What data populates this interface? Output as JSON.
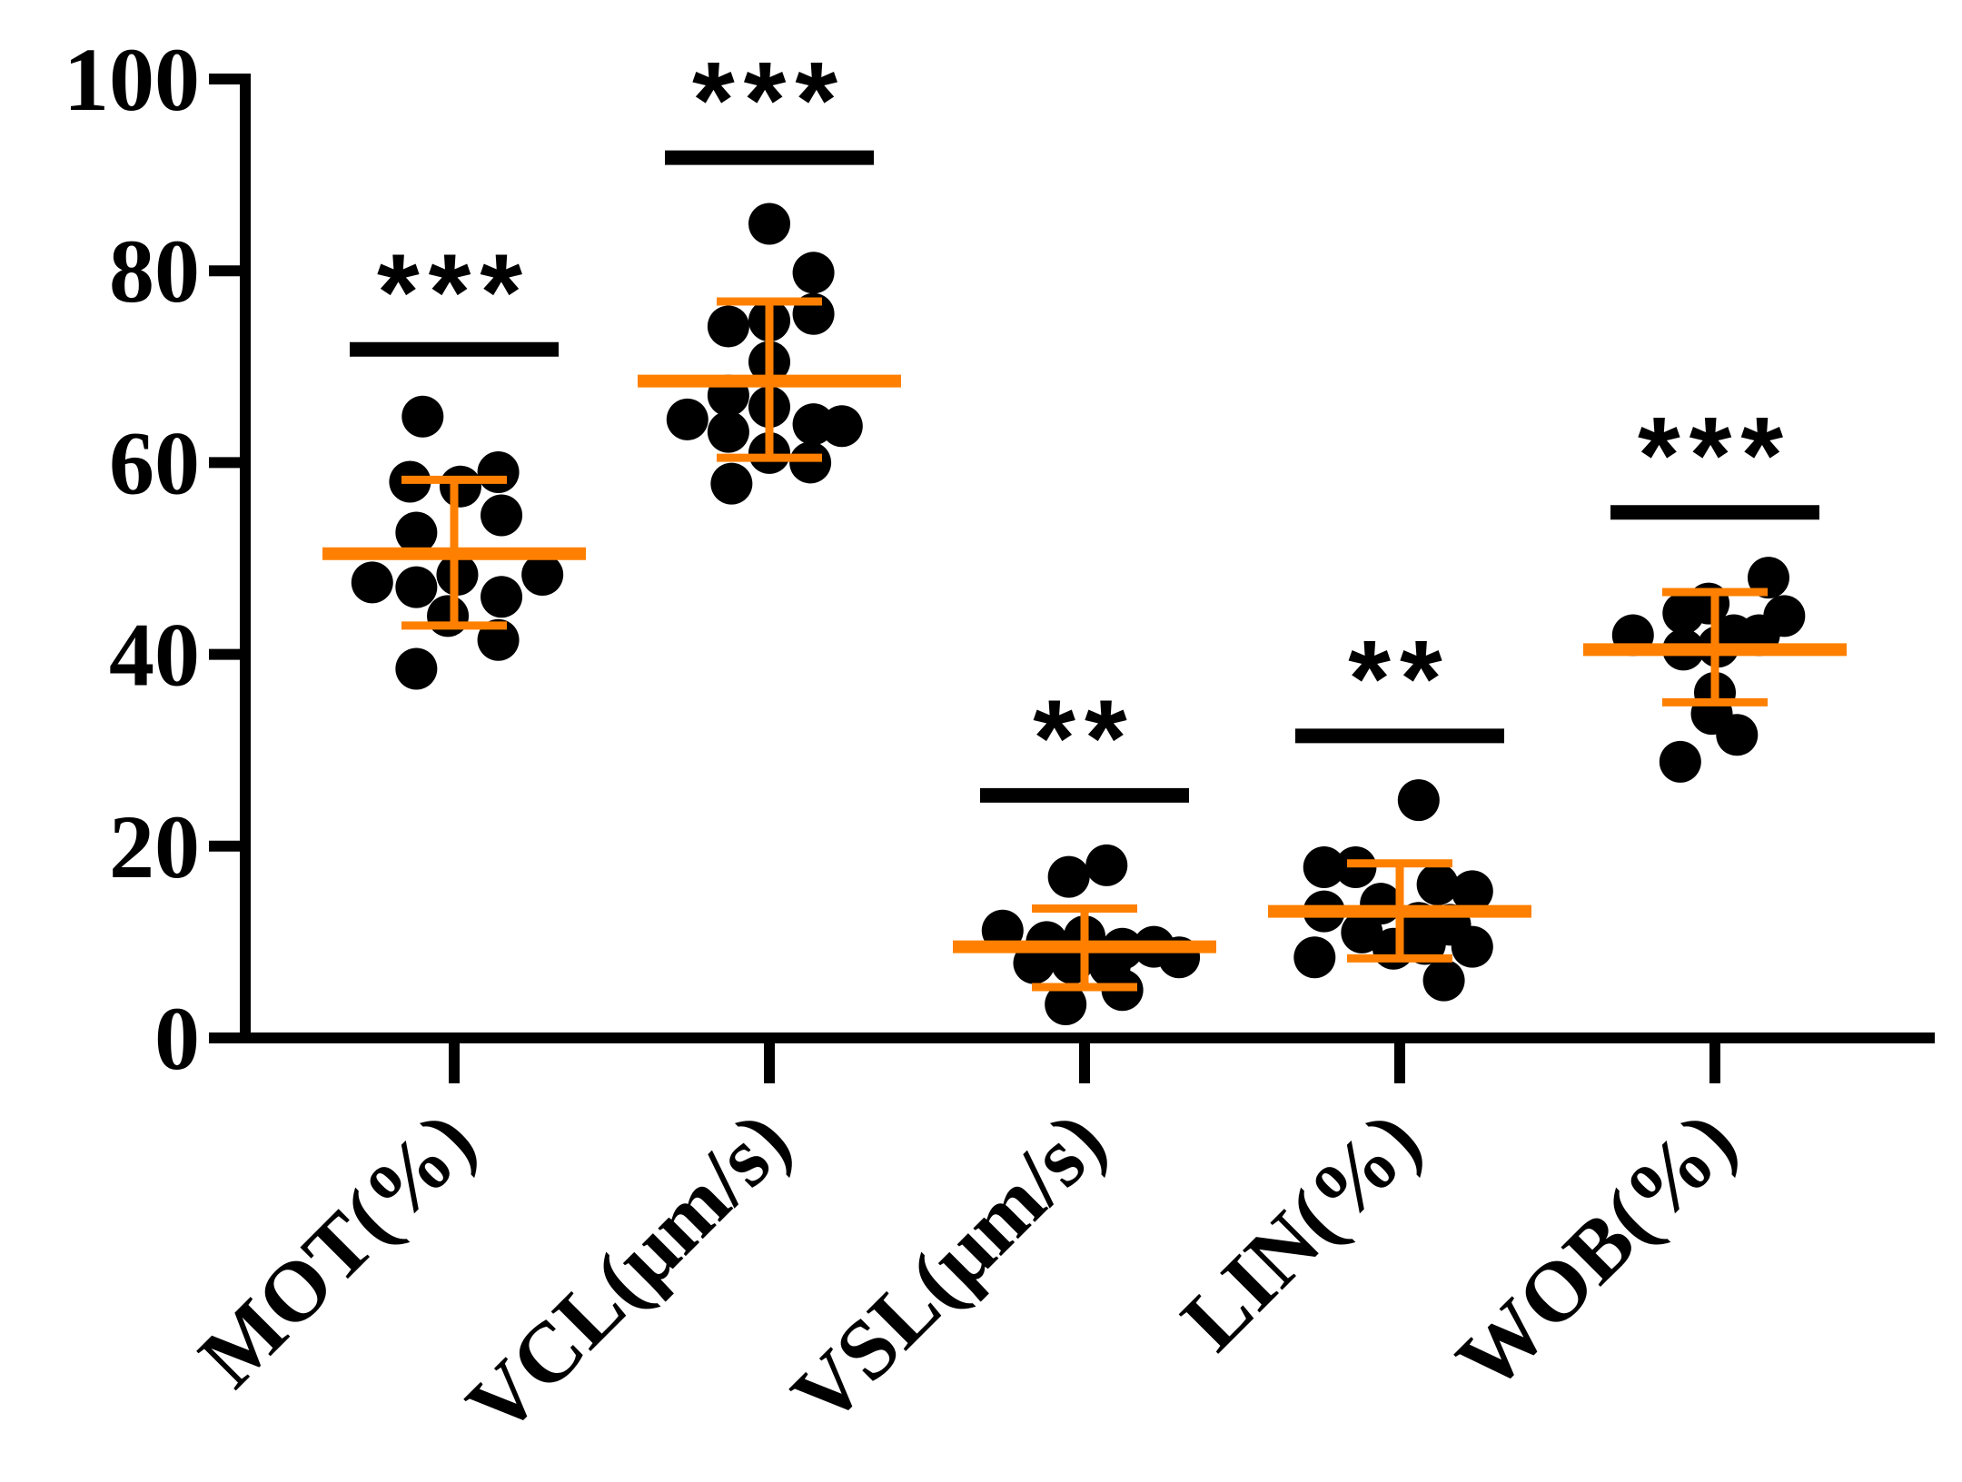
{
  "chart_data": {
    "type": "scatter",
    "categories": [
      "MOT(%)",
      "VCL(μm/s)",
      "VSL(μm/s)",
      "LIN(%)",
      "WOB(%)"
    ],
    "ylim": [
      0,
      100
    ],
    "yticks": [
      0,
      20,
      40,
      60,
      80,
      100
    ],
    "xlabel": "",
    "ylabel": "",
    "grid": false,
    "colors": {
      "points": "#000000",
      "error_bars": "#FF8000",
      "axis": "#000000"
    },
    "groups": [
      {
        "category": "MOT(%)",
        "mean": 50.5,
        "sd_upper": 58.2,
        "sd_lower": 43.0,
        "points": [
          {
            "offset": -0.1,
            "y": 64.8
          },
          {
            "offset": -0.14,
            "y": 58.0
          },
          {
            "offset": 0.14,
            "y": 59.0
          },
          {
            "offset": 0.02,
            "y": 57.5
          },
          {
            "offset": 0.15,
            "y": 54.5
          },
          {
            "offset": -0.12,
            "y": 52.7
          },
          {
            "offset": -0.26,
            "y": 47.5
          },
          {
            "offset": -0.12,
            "y": 47.0
          },
          {
            "offset": 0.01,
            "y": 48.3
          },
          {
            "offset": 0.15,
            "y": 46.0
          },
          {
            "offset": 0.28,
            "y": 48.3
          },
          {
            "offset": -0.02,
            "y": 44.0
          },
          {
            "offset": 0.14,
            "y": 41.5
          },
          {
            "offset": -0.12,
            "y": 38.5
          }
        ],
        "significance": "***",
        "sig_y": 71.8
      },
      {
        "category": "VCL(μm/s)",
        "mean": 68.5,
        "sd_upper": 76.8,
        "sd_lower": 60.5,
        "points": [
          {
            "offset": 0.0,
            "y": 84.9
          },
          {
            "offset": 0.14,
            "y": 79.8
          },
          {
            "offset": -0.13,
            "y": 74.2
          },
          {
            "offset": 0.0,
            "y": 74.8
          },
          {
            "offset": 0.14,
            "y": 75.5
          },
          {
            "offset": 0.0,
            "y": 70.5
          },
          {
            "offset": -0.13,
            "y": 67.0
          },
          {
            "offset": -0.26,
            "y": 64.5
          },
          {
            "offset": 0.0,
            "y": 65.8
          },
          {
            "offset": 0.14,
            "y": 64.0
          },
          {
            "offset": 0.23,
            "y": 63.8
          },
          {
            "offset": -0.13,
            "y": 63.2
          },
          {
            "offset": 0.0,
            "y": 61.0
          },
          {
            "offset": 0.13,
            "y": 60.0
          },
          {
            "offset": -0.12,
            "y": 57.8
          }
        ],
        "significance": "***",
        "sig_y": 91.8
      },
      {
        "category": "VSL(μm/s)",
        "mean": 9.5,
        "sd_upper": 13.5,
        "sd_lower": 5.3,
        "points": [
          {
            "offset": 0.07,
            "y": 18.0
          },
          {
            "offset": -0.05,
            "y": 16.8
          },
          {
            "offset": -0.26,
            "y": 11.2
          },
          {
            "offset": -0.12,
            "y": 10.0
          },
          {
            "offset": 0.0,
            "y": 10.6
          },
          {
            "offset": 0.12,
            "y": 9.3
          },
          {
            "offset": 0.22,
            "y": 9.5
          },
          {
            "offset": 0.3,
            "y": 8.4
          },
          {
            "offset": -0.16,
            "y": 7.8
          },
          {
            "offset": -0.04,
            "y": 7.8
          },
          {
            "offset": 0.08,
            "y": 7.5
          },
          {
            "offset": 0.12,
            "y": 5.0
          },
          {
            "offset": -0.06,
            "y": 3.5
          }
        ],
        "significance": "**",
        "sig_y": 25.3
      },
      {
        "category": "LIN(%)",
        "mean": 13.2,
        "sd_upper": 18.2,
        "sd_lower": 8.3,
        "points": [
          {
            "offset": 0.06,
            "y": 24.8
          },
          {
            "offset": -0.24,
            "y": 17.8
          },
          {
            "offset": -0.14,
            "y": 17.8
          },
          {
            "offset": 0.12,
            "y": 16.0
          },
          {
            "offset": 0.23,
            "y": 15.3
          },
          {
            "offset": -0.24,
            "y": 13.2
          },
          {
            "offset": -0.06,
            "y": 14.0
          },
          {
            "offset": -0.12,
            "y": 11.0
          },
          {
            "offset": 0.06,
            "y": 12.0
          },
          {
            "offset": 0.16,
            "y": 11.8
          },
          {
            "offset": -0.02,
            "y": 9.3
          },
          {
            "offset": 0.08,
            "y": 9.8
          },
          {
            "offset": 0.23,
            "y": 9.5
          },
          {
            "offset": -0.27,
            "y": 8.4
          },
          {
            "offset": 0.14,
            "y": 6.0
          }
        ],
        "significance": "**",
        "sig_y": 31.5
      },
      {
        "category": "WOB(%)",
        "mean": 40.5,
        "sd_upper": 46.5,
        "sd_lower": 35.0,
        "points": [
          {
            "offset": 0.17,
            "y": 48.0
          },
          {
            "offset": -0.1,
            "y": 44.3
          },
          {
            "offset": -0.02,
            "y": 45.3
          },
          {
            "offset": 0.22,
            "y": 44.0
          },
          {
            "offset": -0.26,
            "y": 42.0
          },
          {
            "offset": 0.06,
            "y": 42.0
          },
          {
            "offset": 0.14,
            "y": 42.0
          },
          {
            "offset": -0.1,
            "y": 40.5
          },
          {
            "offset": 0.01,
            "y": 40.8
          },
          {
            "offset": 0.0,
            "y": 36.0
          },
          {
            "offset": -0.01,
            "y": 33.8
          },
          {
            "offset": 0.07,
            "y": 31.6
          },
          {
            "offset": -0.11,
            "y": 28.8
          }
        ],
        "significance": "***",
        "sig_y": 54.8
      }
    ]
  }
}
